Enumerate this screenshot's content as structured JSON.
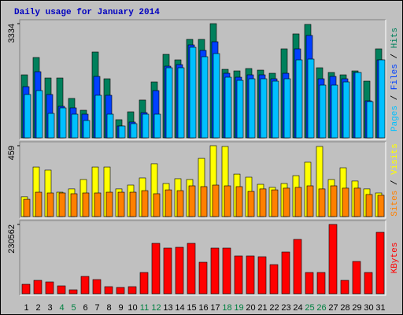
{
  "title": "Daily usage for January 2014",
  "chart_data": [
    {
      "type": "bar",
      "ylim": [
        0,
        3334
      ],
      "yticks": [
        3334
      ],
      "legend_separator": " / ",
      "series": [
        {
          "name": "Hits",
          "color": "#00805c",
          "values": [
            1839,
            2345,
            1747,
            1747,
            1150,
            805,
            2506,
            1724,
            529,
            759,
            1104,
            1632,
            2437,
            2276,
            2874,
            2874,
            3334,
            2000,
            1954,
            2023,
            1977,
            1885,
            2598,
            3035,
            3311,
            2046,
            1908,
            1839,
            1954,
            1655,
            2598
          ]
        },
        {
          "name": "Files",
          "color": "#0040ff",
          "values": [
            1494,
            1931,
            1265,
            920,
            874,
            690,
            1793,
            1242,
            345,
            460,
            736,
            1379,
            2092,
            2138,
            2713,
            2552,
            2805,
            1885,
            1770,
            1839,
            1839,
            1724,
            1885,
            2598,
            2989,
            1724,
            1793,
            1724,
            1908,
            1081,
            2276
          ]
        },
        {
          "name": "Pages",
          "color": "#00c0ff",
          "values": [
            1265,
            1379,
            713,
            874,
            690,
            506,
            1242,
            690,
            345,
            414,
            690,
            690,
            2046,
            2046,
            2644,
            2368,
            2460,
            1770,
            1678,
            1724,
            1724,
            1655,
            1724,
            2276,
            2299,
            1540,
            1540,
            1632,
            1908,
            1058,
            2276
          ]
        }
      ]
    },
    {
      "type": "bar",
      "ylim": [
        0,
        459
      ],
      "yticks": [
        459
      ],
      "legend_separator": " / ",
      "series": [
        {
          "name": "Visits",
          "color": "#ffff00",
          "values": [
            128,
            321,
            301,
            158,
            179,
            240,
            321,
            321,
            179,
            204,
            250,
            342,
            214,
            245,
            240,
            377,
            459,
            454,
            275,
            255,
            209,
            189,
            214,
            265,
            352,
            454,
            240,
            316,
            230,
            179,
            153
          ]
        },
        {
          "name": "Sites",
          "color": "#ff8000",
          "values": [
            112,
            158,
            153,
            153,
            148,
            153,
            153,
            158,
            158,
            158,
            168,
            148,
            173,
            168,
            199,
            194,
            204,
            199,
            194,
            163,
            179,
            173,
            184,
            189,
            199,
            179,
            199,
            184,
            184,
            143,
            138
          ]
        }
      ]
    },
    {
      "type": "bar",
      "ylim": [
        0,
        230562
      ],
      "yticks": [
        230562
      ],
      "categories": [
        "1",
        "2",
        "3",
        "4",
        "5",
        "6",
        "7",
        "8",
        "9",
        "10",
        "11",
        "12",
        "13",
        "14",
        "15",
        "16",
        "17",
        "18",
        "19",
        "20",
        "21",
        "22",
        "23",
        "24",
        "25",
        "26",
        "27",
        "28",
        "29",
        "30",
        "31"
      ],
      "category_colors": [
        "#000000",
        "#000000",
        "#000000",
        "#008040",
        "#008040",
        "#000000",
        "#000000",
        "#000000",
        "#000000",
        "#000000",
        "#008040",
        "#008040",
        "#000000",
        "#000000",
        "#000000",
        "#000000",
        "#000000",
        "#008040",
        "#008040",
        "#000000",
        "#000000",
        "#000000",
        "#000000",
        "#000000",
        "#008040",
        "#008040",
        "#000000",
        "#000000",
        "#000000",
        "#000000",
        "#000000"
      ],
      "series": [
        {
          "name": "KBytes",
          "color": "#ff0000",
          "values": [
            31440,
            44540,
            39300,
            26200,
            13100,
            57640,
            47160,
            23580,
            20960,
            23580,
            70740,
            167680,
            151960,
            154580,
            167680,
            104800,
            151960,
            151960,
            125760,
            125760,
            123140,
            96940,
            138860,
            180780,
            70740,
            70740,
            230562,
            44540,
            107420,
            70740,
            204360
          ]
        }
      ]
    }
  ]
}
